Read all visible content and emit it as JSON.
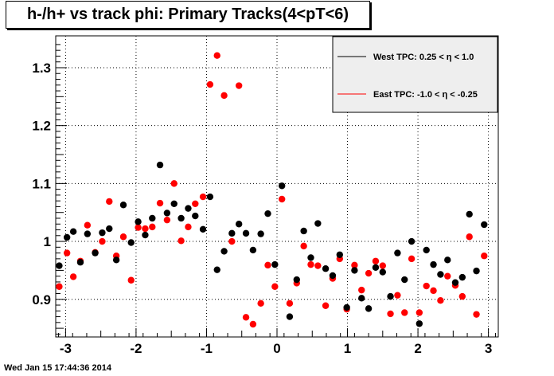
{
  "title": "h-/h+ vs track phi: Primary Tracks(4<pT<6)",
  "timestamp": "Wed Jan 15 17:44:36 2014",
  "colors": {
    "west": "#000000",
    "east": "#ff0000",
    "legend_bg": "#eeeeee",
    "grid": "#000000"
  },
  "chart_data": {
    "type": "scatter",
    "title": "h-/h+ vs track phi: Primary Tracks(4<pT<6)",
    "xlabel": "",
    "ylabel": "",
    "xlim": [
      -3.14,
      3.14
    ],
    "ylim": [
      0.835,
      1.355
    ],
    "grid": true,
    "legend_placement": "top-right",
    "x_ticks": [
      -3,
      -2,
      -1,
      0,
      1,
      2,
      3
    ],
    "x_tick_labels": [
      "-3",
      "-2",
      "-1",
      "0",
      "1",
      "2",
      "3"
    ],
    "y_ticks": [
      0.9,
      1.0,
      1.1,
      1.2,
      1.3
    ],
    "y_tick_labels": [
      "0.9",
      "1",
      "1.1",
      "1.2",
      "1.3"
    ],
    "series": [
      {
        "name": "West TPC: 0.25 <    η < 1.0",
        "color": "#000000",
        "points": [
          [
            -3.09,
            0.958
          ],
          [
            -2.98,
            1.007
          ],
          [
            -2.89,
            1.017
          ],
          [
            -2.79,
            0.964
          ],
          [
            -2.69,
            1.013
          ],
          [
            -2.58,
            0.98
          ],
          [
            -2.48,
            1.015
          ],
          [
            -2.38,
            1.022
          ],
          [
            -2.28,
            0.968
          ],
          [
            -2.18,
            1.063
          ],
          [
            -2.07,
            0.998
          ],
          [
            -1.97,
            1.034
          ],
          [
            -1.87,
            1.011
          ],
          [
            -1.77,
            1.04
          ],
          [
            -1.66,
            1.132
          ],
          [
            -1.56,
            1.049
          ],
          [
            -1.46,
            1.065
          ],
          [
            -1.36,
            1.04
          ],
          [
            -1.26,
            1.057
          ],
          [
            -1.16,
            1.044
          ],
          [
            -1.05,
            1.021
          ],
          [
            -0.95,
            1.077
          ],
          [
            -0.85,
            0.951
          ],
          [
            -0.75,
            0.983
          ],
          [
            -0.64,
            1.014
          ],
          [
            -0.54,
            1.03
          ],
          [
            -0.44,
            1.014
          ],
          [
            -0.34,
            0.985
          ],
          [
            -0.23,
            1.013
          ],
          [
            -0.13,
            1.048
          ],
          [
            -0.03,
            0.96
          ],
          [
            0.07,
            1.096
          ],
          [
            0.18,
            0.87
          ],
          [
            0.28,
            0.934
          ],
          [
            0.38,
            1.018
          ],
          [
            0.48,
            0.972
          ],
          [
            0.58,
            1.031
          ],
          [
            0.69,
            0.953
          ],
          [
            0.79,
            0.941
          ],
          [
            0.89,
            0.977
          ],
          [
            0.99,
            0.886
          ],
          [
            1.1,
            0.95
          ],
          [
            1.2,
            0.902
          ],
          [
            1.3,
            0.884
          ],
          [
            1.4,
            0.955
          ],
          [
            1.5,
            0.947
          ],
          [
            1.61,
            0.905
          ],
          [
            1.71,
            0.98
          ],
          [
            1.81,
            0.934
          ],
          [
            1.91,
            1.0
          ],
          [
            2.02,
            0.858
          ],
          [
            2.12,
            0.985
          ],
          [
            2.22,
            0.96
          ],
          [
            2.32,
            0.943
          ],
          [
            2.42,
            0.968
          ],
          [
            2.53,
            0.929
          ],
          [
            2.63,
            0.938
          ],
          [
            2.73,
            1.047
          ],
          [
            2.83,
            0.949
          ],
          [
            2.94,
            1.029
          ]
        ]
      },
      {
        "name": "East TPC: -1.0 <    η < -0.25",
        "color": "#ff0000",
        "points": [
          [
            -3.09,
            0.922
          ],
          [
            -2.98,
            0.98
          ],
          [
            -2.89,
            0.939
          ],
          [
            -2.79,
            0.966
          ],
          [
            -2.69,
            1.028
          ],
          [
            -2.58,
            0.981
          ],
          [
            -2.48,
            1.0
          ],
          [
            -2.38,
            1.069
          ],
          [
            -2.28,
            0.975
          ],
          [
            -2.18,
            1.008
          ],
          [
            -2.07,
            0.933
          ],
          [
            -1.97,
            1.024
          ],
          [
            -1.87,
            1.022
          ],
          [
            -1.77,
            1.025
          ],
          [
            -1.66,
            1.066
          ],
          [
            -1.56,
            1.037
          ],
          [
            -1.46,
            1.1
          ],
          [
            -1.36,
            1.001
          ],
          [
            -1.26,
            1.025
          ],
          [
            -1.16,
            1.065
          ],
          [
            -1.05,
            1.077
          ],
          [
            -0.95,
            1.271
          ],
          [
            -0.85,
            1.321
          ],
          [
            -0.75,
            1.252
          ],
          [
            -0.64,
            1.0
          ],
          [
            -0.54,
            1.269
          ],
          [
            -0.44,
            0.869
          ],
          [
            -0.34,
            0.857
          ],
          [
            -0.23,
            0.893
          ],
          [
            -0.13,
            0.959
          ],
          [
            -0.03,
            0.922
          ],
          [
            0.07,
            1.073
          ],
          [
            0.18,
            0.893
          ],
          [
            0.28,
            0.928
          ],
          [
            0.38,
            0.992
          ],
          [
            0.48,
            0.96
          ],
          [
            0.58,
            0.958
          ],
          [
            0.69,
            0.889
          ],
          [
            0.79,
            0.936
          ],
          [
            0.89,
            0.97
          ],
          [
            0.99,
            0.883
          ],
          [
            1.1,
            0.959
          ],
          [
            1.2,
            0.916
          ],
          [
            1.3,
            0.945
          ],
          [
            1.4,
            0.966
          ],
          [
            1.5,
            0.958
          ],
          [
            1.61,
            0.875
          ],
          [
            1.71,
            0.907
          ],
          [
            1.81,
            0.877
          ],
          [
            1.91,
            0.97
          ],
          [
            2.02,
            0.877
          ],
          [
            2.12,
            0.923
          ],
          [
            2.22,
            0.915
          ],
          [
            2.32,
            0.898
          ],
          [
            2.42,
            0.94
          ],
          [
            2.53,
            0.924
          ],
          [
            2.63,
            0.905
          ],
          [
            2.73,
            1.008
          ],
          [
            2.83,
            0.874
          ],
          [
            2.94,
            0.975
          ]
        ]
      }
    ]
  }
}
